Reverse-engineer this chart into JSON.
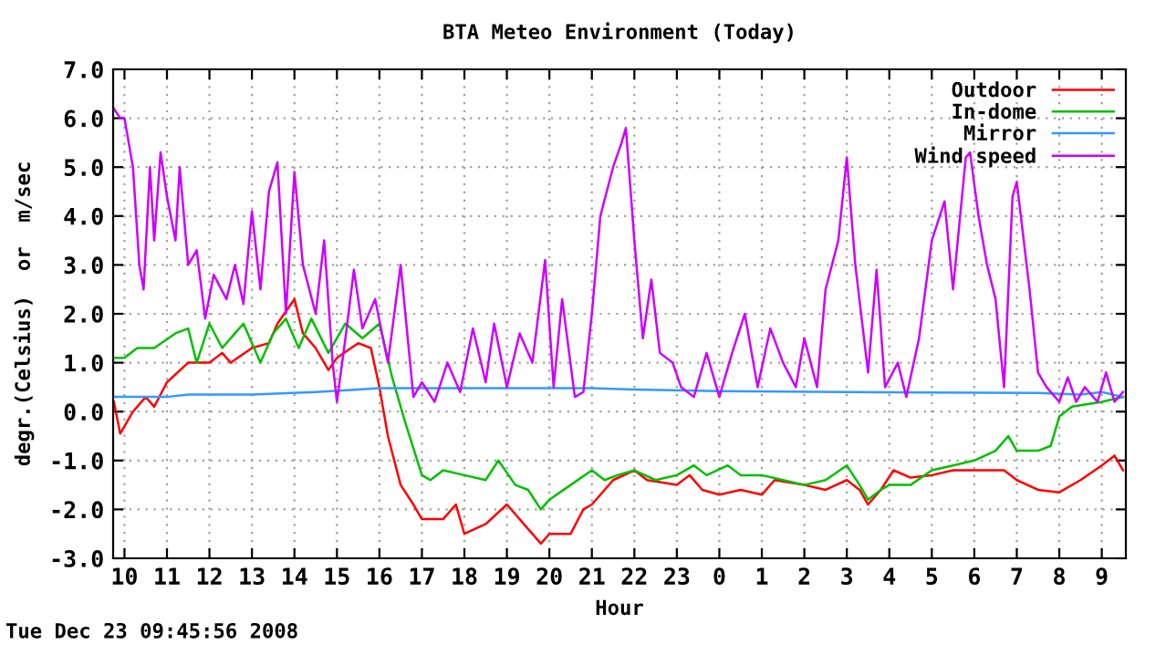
{
  "chart_data": {
    "type": "line",
    "title": "BTA Meteo Environment (Today)",
    "xlabel": "Hour",
    "ylabel": "degr.(Celsius)  or  m/sec",
    "annotations": [
      "Tue Dec 23 09:45:56 2008"
    ],
    "xlim": [
      "2008-12-22T09:44",
      "2008-12-23T09:34"
    ],
    "xticks": [
      {
        "value": "2008-12-22T10:00",
        "label": "10"
      },
      {
        "value": "2008-12-22T11:00",
        "label": "11"
      },
      {
        "value": "2008-12-22T12:00",
        "label": "12"
      },
      {
        "value": "2008-12-22T13:00",
        "label": "13"
      },
      {
        "value": "2008-12-22T14:00",
        "label": "14"
      },
      {
        "value": "2008-12-22T15:00",
        "label": "15"
      },
      {
        "value": "2008-12-22T16:00",
        "label": "16"
      },
      {
        "value": "2008-12-22T17:00",
        "label": "17"
      },
      {
        "value": "2008-12-22T18:00",
        "label": "18"
      },
      {
        "value": "2008-12-22T19:00",
        "label": "19"
      },
      {
        "value": "2008-12-22T20:00",
        "label": "20"
      },
      {
        "value": "2008-12-22T21:00",
        "label": "21"
      },
      {
        "value": "2008-12-22T22:00",
        "label": "22"
      },
      {
        "value": "2008-12-22T23:00",
        "label": "23"
      },
      {
        "value": "2008-12-23T00:00",
        "label": "0"
      },
      {
        "value": "2008-12-23T01:00",
        "label": "1"
      },
      {
        "value": "2008-12-23T02:00",
        "label": "2"
      },
      {
        "value": "2008-12-23T03:00",
        "label": "3"
      },
      {
        "value": "2008-12-23T04:00",
        "label": "4"
      },
      {
        "value": "2008-12-23T05:00",
        "label": "5"
      },
      {
        "value": "2008-12-23T06:00",
        "label": "6"
      },
      {
        "value": "2008-12-23T07:00",
        "label": "7"
      },
      {
        "value": "2008-12-23T08:00",
        "label": "8"
      },
      {
        "value": "2008-12-23T09:00",
        "label": "9"
      }
    ],
    "ylim": [
      -3,
      7
    ],
    "yticks": [
      {
        "value": -3,
        "label": "-3.0"
      },
      {
        "value": -2,
        "label": "-2.0"
      },
      {
        "value": -1,
        "label": "-1.0"
      },
      {
        "value": 0,
        "label": "0.0"
      },
      {
        "value": 1,
        "label": "1.0"
      },
      {
        "value": 2,
        "label": "2.0"
      },
      {
        "value": 3,
        "label": "3.0"
      },
      {
        "value": 4,
        "label": "4.0"
      },
      {
        "value": 5,
        "label": "5.0"
      },
      {
        "value": 6,
        "label": "6.0"
      },
      {
        "value": 7,
        "label": "7.0"
      }
    ],
    "grid": true,
    "legend": "top right",
    "marker": "none",
    "line_style": "solid",
    "series": [
      {
        "name": "Outdoor",
        "color": "#ff0000",
        "x": [
          "2008-12-22T09:45",
          "2008-12-22T09:54",
          "2008-12-22T10:12",
          "2008-12-22T10:30",
          "2008-12-22T10:42",
          "2008-12-22T11:00",
          "2008-12-22T11:30",
          "2008-12-22T12:00",
          "2008-12-22T12:18",
          "2008-12-22T12:30",
          "2008-12-22T13:00",
          "2008-12-22T13:24",
          "2008-12-22T13:36",
          "2008-12-22T14:00",
          "2008-12-22T14:12",
          "2008-12-22T14:30",
          "2008-12-22T14:48",
          "2008-12-22T15:00",
          "2008-12-22T15:30",
          "2008-12-22T15:48",
          "2008-12-22T16:00",
          "2008-12-22T16:12",
          "2008-12-22T16:30",
          "2008-12-22T16:48",
          "2008-12-22T17:00",
          "2008-12-22T17:30",
          "2008-12-22T17:48",
          "2008-12-22T18:00",
          "2008-12-22T18:30",
          "2008-12-22T19:00",
          "2008-12-22T19:30",
          "2008-12-22T19:48",
          "2008-12-22T20:00",
          "2008-12-22T20:30",
          "2008-12-22T20:48",
          "2008-12-22T21:00",
          "2008-12-22T21:18",
          "2008-12-22T21:30",
          "2008-12-22T22:00",
          "2008-12-22T22:18",
          "2008-12-22T23:00",
          "2008-12-22T23:18",
          "2008-12-22T23:36",
          "2008-12-23T00:00",
          "2008-12-23T00:30",
          "2008-12-23T01:00",
          "2008-12-23T01:18",
          "2008-12-23T02:00",
          "2008-12-23T02:30",
          "2008-12-23T03:00",
          "2008-12-23T03:18",
          "2008-12-23T03:30",
          "2008-12-23T03:48",
          "2008-12-23T04:06",
          "2008-12-23T04:30",
          "2008-12-23T05:00",
          "2008-12-23T05:30",
          "2008-12-23T06:00",
          "2008-12-23T06:42",
          "2008-12-23T07:00",
          "2008-12-23T07:30",
          "2008-12-23T08:00",
          "2008-12-23T08:30",
          "2008-12-23T09:00",
          "2008-12-23T09:18",
          "2008-12-23T09:30"
        ],
        "values": [
          0.2,
          -0.45,
          0,
          0.3,
          0.1,
          0.6,
          1,
          1,
          1.2,
          1,
          1.3,
          1.4,
          1.8,
          2.3,
          1.6,
          1.3,
          0.85,
          1.1,
          1.4,
          1.3,
          0.5,
          -0.5,
          -1.5,
          -1.9,
          -2.2,
          -2.2,
          -1.9,
          -2.5,
          -2.3,
          -1.9,
          -2.4,
          -2.7,
          -2.5,
          -2.5,
          -2,
          -1.9,
          -1.6,
          -1.4,
          -1.2,
          -1.4,
          -1.5,
          -1.3,
          -1.6,
          -1.7,
          -1.6,
          -1.7,
          -1.4,
          -1.5,
          -1.6,
          -1.4,
          -1.6,
          -1.9,
          -1.6,
          -1.2,
          -1.35,
          -1.3,
          -1.2,
          -1.2,
          -1.2,
          -1.4,
          -1.6,
          -1.65,
          -1.4,
          -1.1,
          -0.9,
          -1.2
        ]
      },
      {
        "name": "In-dome",
        "color": "#00c000",
        "x": [
          "2008-12-22T09:45",
          "2008-12-22T10:00",
          "2008-12-22T10:18",
          "2008-12-22T10:42",
          "2008-12-22T11:12",
          "2008-12-22T11:30",
          "2008-12-22T11:42",
          "2008-12-22T12:00",
          "2008-12-22T12:18",
          "2008-12-22T12:48",
          "2008-12-22T13:12",
          "2008-12-22T13:30",
          "2008-12-22T13:48",
          "2008-12-22T14:06",
          "2008-12-22T14:24",
          "2008-12-22T14:48",
          "2008-12-22T15:12",
          "2008-12-22T15:36",
          "2008-12-22T16:00",
          "2008-12-22T16:18",
          "2008-12-22T16:36",
          "2008-12-22T17:00",
          "2008-12-22T17:12",
          "2008-12-22T17:30",
          "2008-12-22T18:00",
          "2008-12-22T18:30",
          "2008-12-22T18:48",
          "2008-12-22T19:12",
          "2008-12-22T19:30",
          "2008-12-22T19:48",
          "2008-12-22T20:00",
          "2008-12-22T20:30",
          "2008-12-22T21:00",
          "2008-12-22T21:18",
          "2008-12-22T21:36",
          "2008-12-22T22:00",
          "2008-12-22T22:30",
          "2008-12-22T23:00",
          "2008-12-22T23:24",
          "2008-12-22T23:42",
          "2008-12-23T00:12",
          "2008-12-23T00:30",
          "2008-12-23T01:00",
          "2008-12-23T01:30",
          "2008-12-23T02:00",
          "2008-12-23T02:30",
          "2008-12-23T03:00",
          "2008-12-23T03:18",
          "2008-12-23T03:30",
          "2008-12-23T03:48",
          "2008-12-23T04:00",
          "2008-12-23T04:30",
          "2008-12-23T05:00",
          "2008-12-23T05:30",
          "2008-12-23T06:00",
          "2008-12-23T06:30",
          "2008-12-23T06:48",
          "2008-12-23T07:00",
          "2008-12-23T07:30",
          "2008-12-23T07:48",
          "2008-12-23T08:00",
          "2008-12-23T08:18",
          "2008-12-23T09:00",
          "2008-12-23T09:30"
        ],
        "values": [
          1.1,
          1.1,
          1.3,
          1.3,
          1.6,
          1.7,
          1,
          1.8,
          1.3,
          1.8,
          1,
          1.6,
          1.9,
          1.3,
          1.9,
          1.2,
          1.8,
          1.5,
          1.8,
          0.7,
          -0.2,
          -1.3,
          -1.4,
          -1.2,
          -1.3,
          -1.4,
          -1,
          -1.5,
          -1.6,
          -2,
          -1.8,
          -1.5,
          -1.2,
          -1.4,
          -1.3,
          -1.2,
          -1.4,
          -1.3,
          -1.1,
          -1.3,
          -1.1,
          -1.3,
          -1.3,
          -1.4,
          -1.5,
          -1.4,
          -1.1,
          -1.5,
          -1.8,
          -1.6,
          -1.5,
          -1.5,
          -1.2,
          -1.1,
          -1,
          -0.8,
          -0.5,
          -0.8,
          -0.8,
          -0.7,
          -0.1,
          0.1,
          0.2,
          0.3
        ]
      },
      {
        "name": "Mirror",
        "color": "#3399ff",
        "x": [
          "2008-12-22T09:45",
          "2008-12-22T11:00",
          "2008-12-22T11:30",
          "2008-12-22T13:00",
          "2008-12-22T14:30",
          "2008-12-22T15:30",
          "2008-12-22T16:00",
          "2008-12-22T21:00",
          "2008-12-22T22:00",
          "2008-12-23T00:00",
          "2008-12-23T03:00",
          "2008-12-23T07:30",
          "2008-12-23T08:30",
          "2008-12-23T09:00",
          "2008-12-23T09:30"
        ],
        "values": [
          0.3,
          0.3,
          0.35,
          0.35,
          0.4,
          0.45,
          0.48,
          0.48,
          0.45,
          0.42,
          0.4,
          0.38,
          0.35,
          0.4,
          0.3
        ]
      },
      {
        "name": "Wind speed",
        "color": "#cc00ff",
        "x": [
          "2008-12-22T09:45",
          "2008-12-22T09:54",
          "2008-12-22T10:00",
          "2008-12-22T10:12",
          "2008-12-22T10:21",
          "2008-12-22T10:27",
          "2008-12-22T10:36",
          "2008-12-22T10:42",
          "2008-12-22T10:51",
          "2008-12-22T11:00",
          "2008-12-22T11:12",
          "2008-12-22T11:18",
          "2008-12-22T11:30",
          "2008-12-22T11:42",
          "2008-12-22T11:54",
          "2008-12-22T12:06",
          "2008-12-22T12:24",
          "2008-12-22T12:36",
          "2008-12-22T12:48",
          "2008-12-22T13:00",
          "2008-12-22T13:12",
          "2008-12-22T13:24",
          "2008-12-22T13:36",
          "2008-12-22T13:48",
          "2008-12-22T14:00",
          "2008-12-22T14:12",
          "2008-12-22T14:30",
          "2008-12-22T14:42",
          "2008-12-22T14:54",
          "2008-12-22T15:00",
          "2008-12-22T15:12",
          "2008-12-22T15:24",
          "2008-12-22T15:36",
          "2008-12-22T15:54",
          "2008-12-22T16:12",
          "2008-12-22T16:30",
          "2008-12-22T16:48",
          "2008-12-22T17:00",
          "2008-12-22T17:18",
          "2008-12-22T17:36",
          "2008-12-22T17:54",
          "2008-12-22T18:12",
          "2008-12-22T18:30",
          "2008-12-22T18:42",
          "2008-12-22T19:00",
          "2008-12-22T19:18",
          "2008-12-22T19:36",
          "2008-12-22T19:54",
          "2008-12-22T20:06",
          "2008-12-22T20:18",
          "2008-12-22T20:36",
          "2008-12-22T20:48",
          "2008-12-22T21:00",
          "2008-12-22T21:12",
          "2008-12-22T21:30",
          "2008-12-22T21:42",
          "2008-12-22T21:48",
          "2008-12-22T22:00",
          "2008-12-22T22:12",
          "2008-12-22T22:24",
          "2008-12-22T22:36",
          "2008-12-22T22:54",
          "2008-12-22T23:06",
          "2008-12-22T23:24",
          "2008-12-22T23:42",
          "2008-12-23T00:00",
          "2008-12-23T00:18",
          "2008-12-23T00:36",
          "2008-12-23T00:54",
          "2008-12-23T01:12",
          "2008-12-23T01:30",
          "2008-12-23T01:48",
          "2008-12-23T02:00",
          "2008-12-23T02:18",
          "2008-12-23T02:30",
          "2008-12-23T02:48",
          "2008-12-23T03:00",
          "2008-12-23T03:12",
          "2008-12-23T03:30",
          "2008-12-23T03:42",
          "2008-12-23T03:54",
          "2008-12-23T04:12",
          "2008-12-23T04:24",
          "2008-12-23T04:42",
          "2008-12-23T05:00",
          "2008-12-23T05:18",
          "2008-12-23T05:30",
          "2008-12-23T05:48",
          "2008-12-23T05:54",
          "2008-12-23T06:06",
          "2008-12-23T06:18",
          "2008-12-23T06:30",
          "2008-12-23T06:42",
          "2008-12-23T06:54",
          "2008-12-23T07:00",
          "2008-12-23T07:18",
          "2008-12-23T07:30",
          "2008-12-23T07:42",
          "2008-12-23T08:00",
          "2008-12-23T08:12",
          "2008-12-23T08:24",
          "2008-12-23T08:36",
          "2008-12-23T08:54",
          "2008-12-23T09:06",
          "2008-12-23T09:18",
          "2008-12-23T09:30"
        ],
        "values": [
          6.2,
          6,
          6,
          5,
          3,
          2.5,
          5,
          3.5,
          5.3,
          4.4,
          3.5,
          5,
          3,
          3.3,
          1.9,
          2.8,
          2.3,
          3,
          2.2,
          4.1,
          2.5,
          4.5,
          5.1,
          2,
          4.9,
          3,
          2,
          3.5,
          1,
          0.2,
          1.5,
          2.9,
          1.7,
          2.3,
          1,
          3,
          0.3,
          0.6,
          0.2,
          1,
          0.4,
          1.7,
          0.6,
          1.8,
          0.5,
          1.6,
          1,
          3.1,
          0.5,
          2.3,
          0.3,
          0.4,
          2,
          4,
          5,
          5.5,
          5.8,
          3.5,
          1.5,
          2.7,
          1.2,
          1,
          0.5,
          0.3,
          1.2,
          0.3,
          1.2,
          2,
          0.5,
          1.7,
          1,
          0.5,
          1.5,
          0.5,
          2.5,
          3.5,
          5.2,
          3,
          0.8,
          2.9,
          0.5,
          1,
          0.3,
          1.5,
          3.5,
          4.3,
          2.5,
          5.2,
          5.3,
          4,
          3,
          2.3,
          0.5,
          4.4,
          4.7,
          2.5,
          0.8,
          0.5,
          0.2,
          0.7,
          0.2,
          0.5,
          0.2,
          0.8,
          0.2,
          0.4
        ]
      }
    ]
  }
}
